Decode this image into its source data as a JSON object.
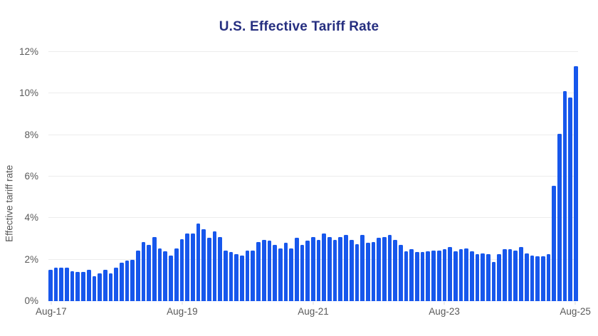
{
  "header": {
    "title": "U.S. Effective Tariff Rate"
  },
  "colors": {
    "bar": "#1757ec",
    "title_text": "#262f80",
    "axis_text": "#595959",
    "gridline": "#ececec",
    "baseline": "#ccd9f3",
    "tick_mark": "#d9d9d9",
    "background": "#ffffff"
  },
  "chart_data": {
    "type": "bar",
    "title": "U.S. Effective Tariff Rate",
    "xlabel": "",
    "ylabel": "Effective tariff rate",
    "ylim": [
      0,
      12
    ],
    "yticks": [
      0,
      2,
      4,
      6,
      8,
      10,
      12
    ],
    "ytick_labels": [
      "0%",
      "2%",
      "4%",
      "6%",
      "8%",
      "10%",
      "12%"
    ],
    "xtick_labels": [
      "Aug-17",
      "Aug-19",
      "Aug-21",
      "Aug-23",
      "Aug-25"
    ],
    "grid": "horizontal",
    "legend_position": "none",
    "value_unit": "%",
    "categories": [
      "Aug-17",
      "Sep-17",
      "Oct-17",
      "Nov-17",
      "Dec-17",
      "Jan-18",
      "Feb-18",
      "Mar-18",
      "Apr-18",
      "May-18",
      "Jun-18",
      "Jul-18",
      "Aug-18",
      "Sep-18",
      "Oct-18",
      "Nov-18",
      "Dec-18",
      "Jan-19",
      "Feb-19",
      "Mar-19",
      "Apr-19",
      "May-19",
      "Jun-19",
      "Jul-19",
      "Aug-19",
      "Sep-19",
      "Oct-19",
      "Nov-19",
      "Dec-19",
      "Jan-20",
      "Feb-20",
      "Mar-20",
      "Apr-20",
      "May-20",
      "Jun-20",
      "Jul-20",
      "Aug-20",
      "Sep-20",
      "Oct-20",
      "Nov-20",
      "Dec-20",
      "Jan-21",
      "Feb-21",
      "Mar-21",
      "Apr-21",
      "May-21",
      "Jun-21",
      "Jul-21",
      "Aug-21",
      "Sep-21",
      "Oct-21",
      "Nov-21",
      "Dec-21",
      "Jan-22",
      "Feb-22",
      "Mar-22",
      "Apr-22",
      "May-22",
      "Jun-22",
      "Jul-22",
      "Aug-22",
      "Sep-22",
      "Oct-22",
      "Nov-22",
      "Dec-22",
      "Jan-23",
      "Feb-23",
      "Mar-23",
      "Apr-23",
      "May-23",
      "Jun-23",
      "Jul-23",
      "Aug-23",
      "Sep-23",
      "Oct-23",
      "Nov-23",
      "Dec-23",
      "Jan-24",
      "Feb-24",
      "Mar-24",
      "Apr-24",
      "May-24",
      "Jun-24",
      "Jul-24",
      "Aug-24",
      "Sep-24",
      "Oct-24",
      "Nov-24",
      "Dec-24",
      "Jan-25",
      "Feb-25",
      "Mar-25",
      "Apr-25",
      "May-25",
      "Jun-25",
      "Jul-25",
      "Aug-25"
    ],
    "values": [
      1.5,
      1.6,
      1.6,
      1.6,
      1.45,
      1.4,
      1.4,
      1.5,
      1.2,
      1.35,
      1.5,
      1.35,
      1.6,
      1.85,
      1.95,
      2.0,
      2.45,
      2.85,
      2.7,
      3.1,
      2.55,
      2.4,
      2.2,
      2.55,
      3.0,
      3.25,
      3.25,
      3.75,
      3.45,
      3.05,
      3.35,
      3.1,
      2.45,
      2.35,
      2.25,
      2.2,
      2.45,
      2.45,
      2.85,
      2.95,
      2.9,
      2.7,
      2.55,
      2.8,
      2.55,
      3.05,
      2.7,
      2.9,
      3.1,
      2.95,
      3.25,
      3.1,
      2.95,
      3.1,
      3.2,
      2.95,
      2.75,
      3.2,
      2.8,
      2.85,
      3.05,
      3.1,
      3.2,
      2.95,
      2.7,
      2.4,
      2.5,
      2.35,
      2.35,
      2.4,
      2.45,
      2.45,
      2.5,
      2.6,
      2.4,
      2.5,
      2.55,
      2.4,
      2.25,
      2.3,
      2.25,
      1.9,
      2.25,
      2.5,
      2.5,
      2.45,
      2.6,
      2.3,
      2.2,
      2.15,
      2.15,
      2.25,
      5.55,
      8.05,
      10.1,
      9.8,
      11.3
    ]
  }
}
